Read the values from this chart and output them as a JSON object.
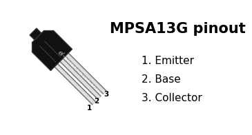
{
  "title": "MPSA13G pinout",
  "pins": [
    "1. Emitter",
    "2. Base",
    "3. Collector"
  ],
  "watermark": "el-component.com",
  "bg_color": "#ffffff",
  "fg_color": "#000000",
  "title_fontsize": 15,
  "pin_fontsize": 11,
  "watermark_fontsize": 6.5,
  "pin_numbers": [
    "1",
    "2",
    "3"
  ],
  "body_color": "#111111",
  "body_edge": "#333333",
  "lead_light": "#e0e0e0",
  "lead_mid": "#aaaaaa",
  "lead_dark": "#555555",
  "shine_color": "#444444"
}
